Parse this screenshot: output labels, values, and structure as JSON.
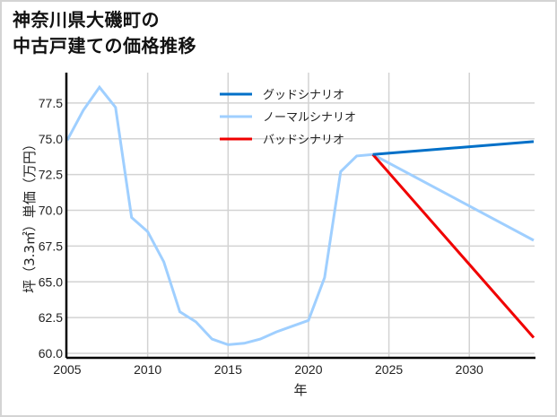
{
  "chart_data": {
    "type": "line",
    "title": "神奈川県大磯町の\n中古戸建ての価格推移",
    "title_lines": [
      "神奈川県大磯町の",
      "中古戸建ての価格推移"
    ],
    "xlabel": "年",
    "ylabel": "坪（3.3㎡）単価（万円）",
    "xlim": [
      2005,
      2034
    ],
    "ylim": [
      59.8,
      78.8
    ],
    "xticks": [
      2005,
      2010,
      2015,
      2020,
      2025,
      2030
    ],
    "yticks": [
      60.0,
      62.5,
      65.0,
      67.5,
      70.0,
      72.5,
      75.0,
      77.5
    ],
    "ytick_labels": [
      "60.0",
      "62.5",
      "65.0",
      "67.5",
      "70.0",
      "72.5",
      "75.0",
      "77.5"
    ],
    "grid": true,
    "legend_position": "upper center",
    "series": [
      {
        "name": "グッドシナリオ",
        "color": "#0070c8",
        "x": [
          2024,
          2034
        ],
        "values": [
          73.9,
          74.8
        ]
      },
      {
        "name": "ノーマルシナリオ",
        "color": "#9fcfff",
        "x": [
          2005,
          2006,
          2007,
          2008,
          2009,
          2010,
          2011,
          2012,
          2013,
          2014,
          2015,
          2016,
          2017,
          2018,
          2019,
          2020,
          2021,
          2022,
          2023,
          2024,
          2034
        ],
        "values": [
          74.9,
          77.0,
          78.6,
          77.2,
          69.5,
          68.5,
          66.4,
          62.9,
          62.2,
          61.0,
          60.6,
          60.7,
          61.0,
          61.5,
          61.9,
          62.3,
          65.3,
          72.7,
          73.8,
          73.9,
          67.9
        ]
      },
      {
        "name": "バッドシナリオ",
        "color": "#f00000",
        "x": [
          2024,
          2034
        ],
        "values": [
          73.9,
          61.1
        ]
      }
    ]
  },
  "legend": {
    "items": [
      {
        "label": "グッドシナリオ",
        "color": "#0070c8"
      },
      {
        "label": "ノーマルシナリオ",
        "color": "#9fcfff"
      },
      {
        "label": "バッドシナリオ",
        "color": "#f00000"
      }
    ]
  }
}
